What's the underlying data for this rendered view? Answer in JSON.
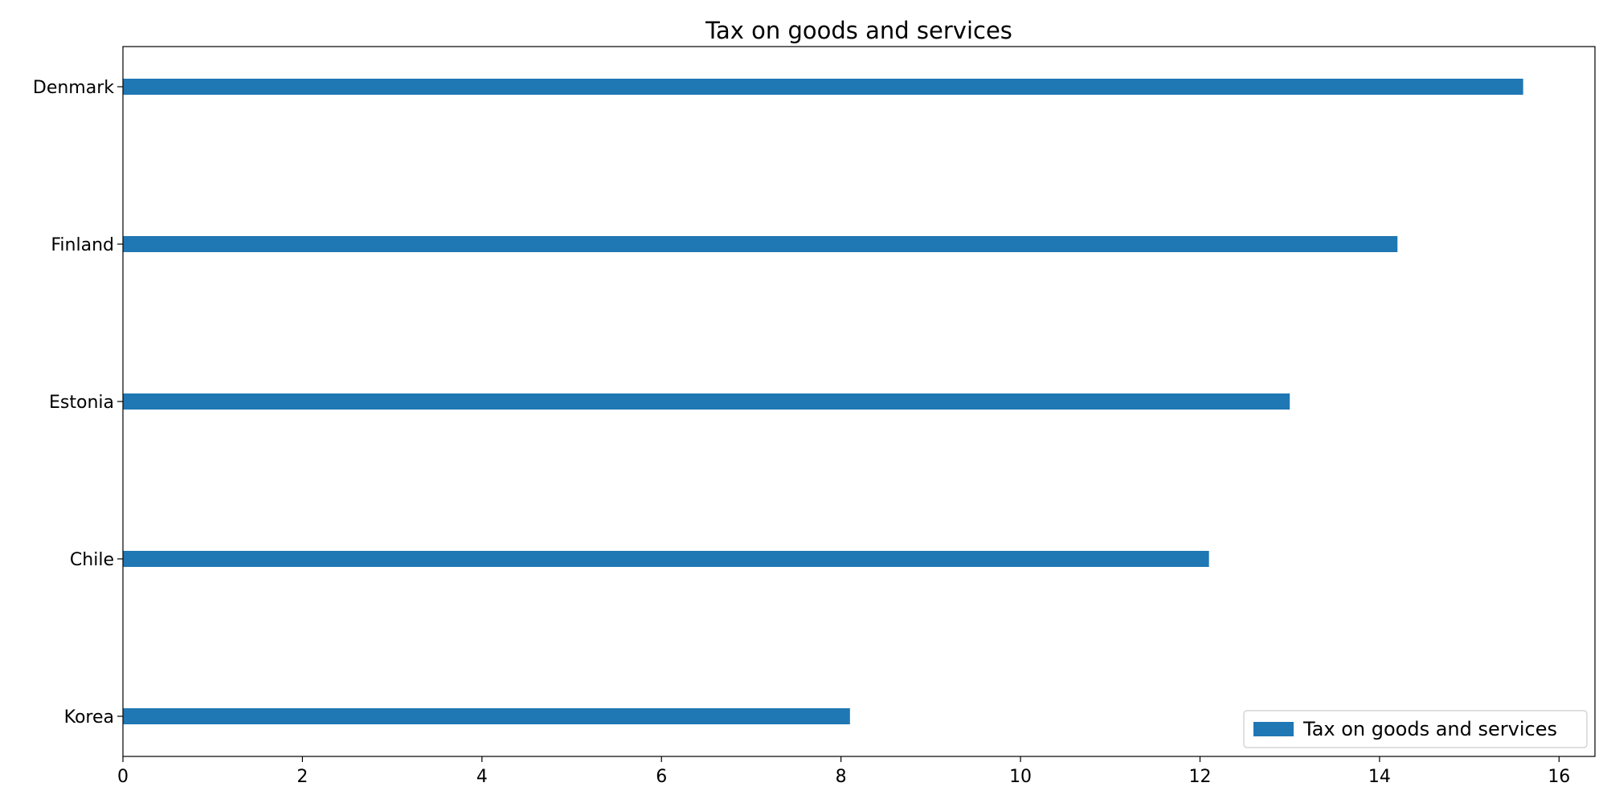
{
  "chart_data": {
    "type": "bar",
    "orientation": "horizontal",
    "title": "Tax on goods and services",
    "xlabel": "",
    "ylabel": "",
    "categories": [
      "Korea",
      "Chile",
      "Estonia",
      "Finland",
      "Denmark"
    ],
    "series": [
      {
        "name": "Tax on goods and services",
        "values": [
          8.1,
          12.1,
          13.0,
          14.2,
          15.6
        ],
        "color": "#1f77b4"
      }
    ],
    "xlim": [
      0,
      16.4
    ],
    "xticks": [
      0,
      2,
      4,
      6,
      8,
      10,
      12,
      14,
      16
    ],
    "grid": false,
    "legend_position": "lower-right"
  }
}
